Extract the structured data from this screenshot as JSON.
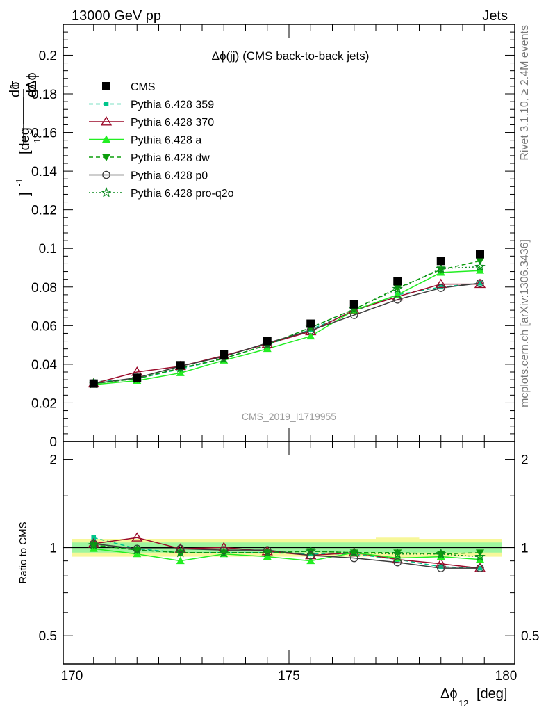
{
  "header": {
    "energy_label": "13000 GeV pp",
    "process_label": "Jets"
  },
  "side_labels": {
    "rivet_version": "Rivet 3.1.10, ≥ 2.4M events",
    "source": "mcplots.cern.ch [arXiv:1306.3436]"
  },
  "watermark": "CMS_2019_I1719955",
  "colors": {
    "CMS": "#000000",
    "p359": "#00c58a",
    "p370": "#9b0a2a",
    "pa": "#22ee22",
    "pdw": "#0c9e0c",
    "pp0": "#3b3b3b",
    "pq2o": "#0a8a1e",
    "band_inner": "#9ef59e",
    "band_outer": "#f7f79a"
  },
  "chart_data": [
    {
      "type": "line",
      "title": "Δϕ(jj) (CMS back-to-back jets)",
      "xlabel": "Δϕ",
      "xlabel_sub": "12",
      "xlabel_unit": "[deg]",
      "ylabel_main": "1",
      "ylabel_frac": "dσ",
      "ylabel_den_a": "σ",
      "ylabel_den_b": "dΔϕ",
      "ylabel_den_sub": "12",
      "ylabel_unit": "[deg",
      "ylabel_unit_sup": "-1",
      "ylabel_unit_close": "]",
      "xlim": [
        169.8,
        180.2
      ],
      "ylim": [
        0,
        0.216
      ],
      "yticks": [
        0,
        0.02,
        0.04,
        0.06,
        0.08,
        0.1,
        0.12,
        0.14,
        0.16,
        0.18,
        0.2
      ],
      "ytick_labels": [
        "0",
        "0.02",
        "0.04",
        "0.06",
        "0.08",
        "0.1",
        "0.12",
        "0.14",
        "0.16",
        "0.18",
        "0.2"
      ],
      "x": [
        170.5,
        171.5,
        172.5,
        173.5,
        174.5,
        175.5,
        176.5,
        177.5,
        178.5,
        179.4
      ],
      "legend_position": "top-left",
      "series": [
        {
          "key": "CMS",
          "name": "CMS",
          "marker": "square",
          "line": "none",
          "values": [
            0.03,
            0.033,
            0.0395,
            0.045,
            0.052,
            0.061,
            0.071,
            0.083,
            0.0935,
            0.097
          ]
        },
        {
          "key": "p359",
          "name": "Pythia 6.428 359",
          "marker": "small-square",
          "line": "dashed",
          "values": [
            0.031,
            0.0325,
            0.0375,
            0.043,
            0.05,
            0.058,
            0.0675,
            0.076,
            0.08,
            0.082
          ]
        },
        {
          "key": "p370",
          "name": "Pythia 6.428 370",
          "marker": "open-triangle",
          "line": "solid",
          "values": [
            0.03,
            0.036,
            0.039,
            0.0445,
            0.0505,
            0.057,
            0.068,
            0.075,
            0.0815,
            0.0815
          ]
        },
        {
          "key": "pa",
          "name": "Pythia 6.428 a",
          "marker": "triangle",
          "line": "solid",
          "values": [
            0.0295,
            0.0315,
            0.0355,
            0.042,
            0.048,
            0.0545,
            0.068,
            0.076,
            0.0875,
            0.0885
          ]
        },
        {
          "key": "pdw",
          "name": "Pythia 6.428 dw",
          "marker": "triangle-down",
          "line": "dashed",
          "values": [
            0.03,
            0.0325,
            0.038,
            0.043,
            0.05,
            0.059,
            0.0685,
            0.0795,
            0.089,
            0.0935
          ]
        },
        {
          "key": "pp0",
          "name": "Pythia 6.428 p0",
          "marker": "open-circle",
          "line": "solid",
          "values": [
            0.03,
            0.033,
            0.039,
            0.044,
            0.051,
            0.0575,
            0.0655,
            0.0735,
            0.0795,
            0.082
          ]
        },
        {
          "key": "pq2o",
          "name": "Pythia 6.428 pro-q2o",
          "marker": "star",
          "line": "dotted",
          "values": [
            0.03,
            0.0325,
            0.038,
            0.043,
            0.05,
            0.059,
            0.0685,
            0.079,
            0.0895,
            0.0905
          ]
        }
      ]
    },
    {
      "type": "line",
      "ylabel": "Ratio to CMS",
      "xlim": [
        169.8,
        180.2
      ],
      "ylim": [
        0.4,
        2.3
      ],
      "log_y": true,
      "yticks": [
        0.5,
        1,
        2
      ],
      "ytick_labels": [
        "0.5",
        "1",
        "2"
      ],
      "xticks": [
        170,
        175,
        180
      ],
      "xtick_labels": [
        "170",
        "175",
        "180"
      ],
      "x": [
        170.5,
        171.5,
        172.5,
        173.5,
        174.5,
        175.5,
        176.5,
        177.5,
        178.5,
        179.4
      ],
      "band_inner_halfwidth": [
        0.04,
        0.04,
        0.04,
        0.04,
        0.04,
        0.04,
        0.04,
        0.04,
        0.04,
        0.04
      ],
      "band_outer_halfwidth": [
        0.07,
        0.07,
        0.07,
        0.07,
        0.07,
        0.07,
        0.07,
        0.08,
        0.07,
        0.07
      ],
      "series": [
        {
          "key": "p359",
          "values": [
            1.08,
            0.99,
            0.96,
            0.96,
            0.96,
            0.95,
            0.95,
            0.91,
            0.86,
            0.85
          ]
        },
        {
          "key": "p370",
          "values": [
            1.03,
            1.08,
            0.99,
            1.0,
            0.97,
            0.94,
            0.96,
            0.91,
            0.88,
            0.85
          ]
        },
        {
          "key": "pa",
          "values": [
            0.99,
            0.95,
            0.9,
            0.95,
            0.93,
            0.9,
            0.96,
            0.92,
            0.93,
            0.91
          ]
        },
        {
          "key": "pdw",
          "values": [
            1.02,
            0.98,
            0.96,
            0.96,
            0.96,
            0.97,
            0.96,
            0.96,
            0.95,
            0.96
          ]
        },
        {
          "key": "pp0",
          "values": [
            1.03,
            0.99,
            0.99,
            0.98,
            0.98,
            0.94,
            0.92,
            0.89,
            0.85,
            0.85
          ]
        },
        {
          "key": "pq2o",
          "values": [
            1.02,
            0.98,
            0.96,
            0.96,
            0.96,
            0.97,
            0.96,
            0.95,
            0.95,
            0.93
          ]
        }
      ]
    }
  ]
}
